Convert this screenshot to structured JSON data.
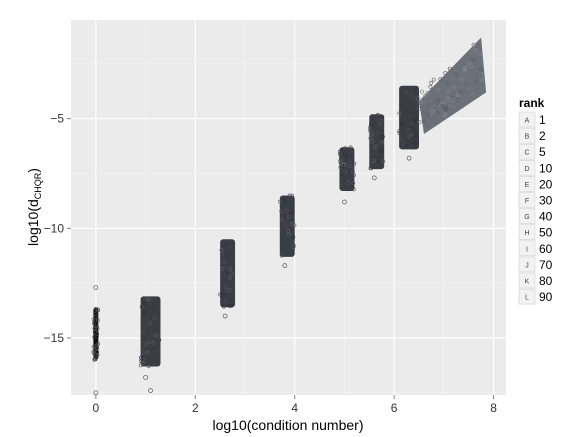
{
  "chart_data": {
    "type": "scatter",
    "xlabel": "log10(condition number)",
    "ylabel_parts": [
      "log10(d",
      "CHQR",
      ")"
    ],
    "xlim": [
      -0.5,
      8.25
    ],
    "ylim": [
      -17.6,
      -0.5
    ],
    "x_ticks": [
      0,
      2,
      4,
      6,
      8
    ],
    "x_tick_labels": [
      "0",
      "2",
      "4",
      "6",
      "8"
    ],
    "y_ticks": [
      -15,
      -10,
      -5
    ],
    "y_tick_labels": [
      "−15",
      "−10",
      "−5"
    ],
    "grid": true,
    "legend": {
      "title": "rank",
      "placement": "right",
      "keys": [
        "A",
        "B",
        "C",
        "D",
        "E",
        "F",
        "G",
        "H",
        "I",
        "J",
        "K",
        "L"
      ],
      "labels": [
        "1",
        "2",
        "5",
        "10",
        "20",
        "30",
        "40",
        "50",
        "60",
        "70",
        "80",
        "90"
      ]
    },
    "clusters": [
      {
        "x_min": -0.05,
        "x_max": 0.05,
        "y_min": -16.0,
        "y_max": -13.6,
        "outliers": [
          [
            0.0,
            -12.7
          ],
          [
            0.0,
            -17.5
          ]
        ]
      },
      {
        "x_min": 0.9,
        "x_max": 1.3,
        "y_min": -16.3,
        "y_max": -13.1,
        "outliers": [
          [
            1.0,
            -16.8
          ],
          [
            1.1,
            -17.4
          ]
        ]
      },
      {
        "x_min": 2.5,
        "x_max": 2.8,
        "y_min": -13.6,
        "y_max": -10.5,
        "outliers": [
          [
            2.6,
            -14.0
          ]
        ]
      },
      {
        "x_min": 3.7,
        "x_max": 4.0,
        "y_min": -11.3,
        "y_max": -8.5,
        "outliers": [
          [
            3.8,
            -11.7
          ]
        ]
      },
      {
        "x_min": 4.9,
        "x_max": 5.2,
        "y_min": -8.3,
        "y_max": -6.3,
        "outliers": [
          [
            5.0,
            -8.8
          ]
        ]
      },
      {
        "x_min": 5.5,
        "x_max": 5.8,
        "y_min": -7.3,
        "y_max": -4.8,
        "outliers": [
          [
            5.6,
            -7.7
          ]
        ]
      },
      {
        "x_min": 6.1,
        "x_max": 6.5,
        "y_min": -6.4,
        "y_max": -3.5,
        "outliers": [
          [
            6.3,
            -6.8
          ]
        ]
      },
      {
        "x_min": 6.5,
        "x_max": 7.8,
        "y_min": -5.6,
        "y_max": -1.3,
        "outliers": []
      }
    ]
  }
}
